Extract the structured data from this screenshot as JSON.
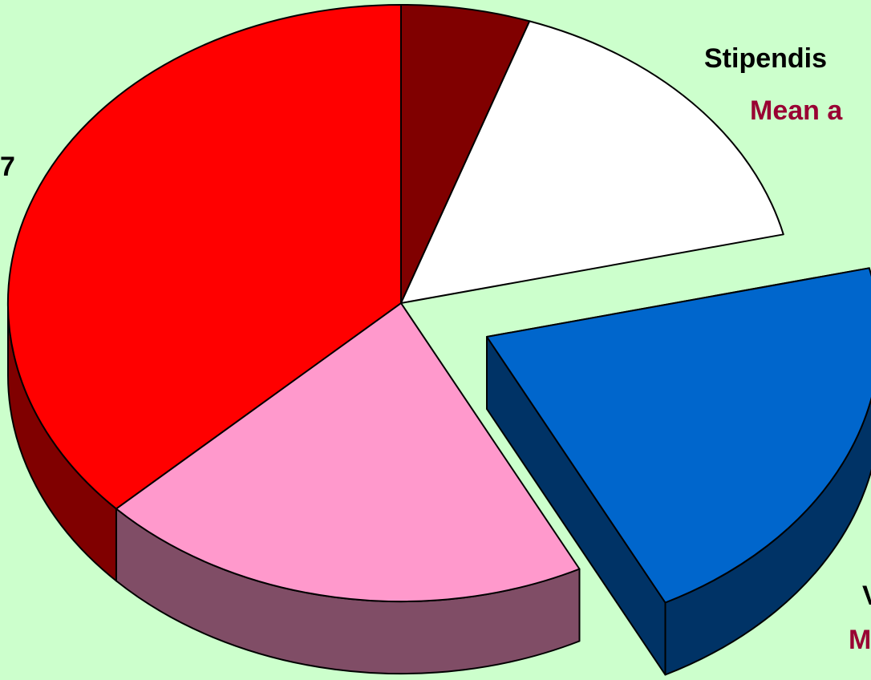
{
  "chart_data": {
    "type": "pie",
    "values": [
      5.3,
      16,
      21.2,
      20.4,
      37.1
    ],
    "colors": [
      "#800000",
      "#ffffff",
      "#0066cc",
      "#ff99cc",
      "#ff0000"
    ],
    "side_colors": [
      "#800000",
      "#808080",
      "#003366",
      "#804d66",
      "#800000"
    ],
    "exploded_index": 2,
    "annotations": [
      {
        "text": "Stipendis",
        "color": "#000000"
      },
      {
        "text": "Mean a",
        "color": "#990033"
      },
      {
        "text": "7",
        "color": "#000000"
      },
      {
        "text": "V",
        "color": "#000000"
      },
      {
        "text": "M",
        "color": "#990033"
      }
    ]
  }
}
